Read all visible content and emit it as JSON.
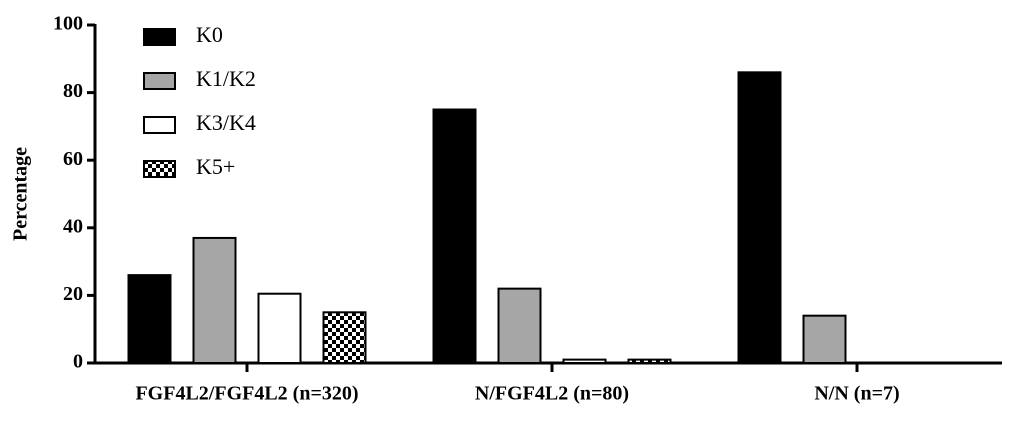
{
  "chart_data": {
    "type": "bar",
    "y_label": "Percentage",
    "categories": [
      "FGF4L2/FGF4L2 (n=320)",
      "N/FGF4L2 (n=80)",
      "N/N (n=7)"
    ],
    "series": [
      {
        "name": "K0",
        "color": "#000000",
        "values": [
          26,
          75,
          86
        ]
      },
      {
        "name": "K1/K2",
        "color": "#a6a6a6",
        "values": [
          37,
          22,
          14
        ]
      },
      {
        "name": "K3/K4",
        "color": "#ffffff",
        "values": [
          20.5,
          1,
          0
        ]
      },
      {
        "name": "K5+",
        "color": "#000000",
        "pattern": "checker",
        "values": [
          15,
          1,
          0
        ]
      }
    ],
    "ylim": [
      0,
      100
    ],
    "yticks": [
      0,
      20,
      40,
      60,
      80,
      100
    ],
    "grid": false,
    "legend": "top-left"
  }
}
